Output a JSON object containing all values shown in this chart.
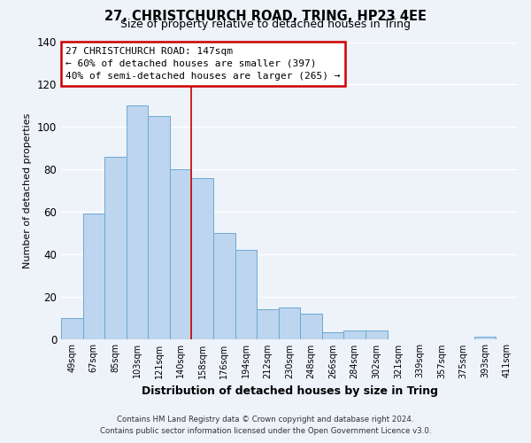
{
  "title": "27, CHRISTCHURCH ROAD, TRING, HP23 4EE",
  "subtitle": "Size of property relative to detached houses in Tring",
  "xlabel": "Distribution of detached houses by size in Tring",
  "ylabel": "Number of detached properties",
  "bar_labels": [
    "49sqm",
    "67sqm",
    "85sqm",
    "103sqm",
    "121sqm",
    "140sqm",
    "158sqm",
    "176sqm",
    "194sqm",
    "212sqm",
    "230sqm",
    "248sqm",
    "266sqm",
    "284sqm",
    "302sqm",
    "321sqm",
    "339sqm",
    "357sqm",
    "375sqm",
    "393sqm",
    "411sqm"
  ],
  "bar_values": [
    10,
    59,
    86,
    110,
    105,
    80,
    76,
    50,
    42,
    14,
    15,
    12,
    3,
    4,
    4,
    0,
    0,
    0,
    0,
    1,
    0
  ],
  "bar_color": "#bdd5ee",
  "bar_edge_color": "#6aaad4",
  "background_color": "#eef2f9",
  "grid_color": "#ffffff",
  "ylim": [
    0,
    140
  ],
  "yticks": [
    0,
    20,
    40,
    60,
    80,
    100,
    120,
    140
  ],
  "vline_x": 5.5,
  "vline_color": "#cc0000",
  "annotation_title": "27 CHRISTCHURCH ROAD: 147sqm",
  "annotation_line1": "← 60% of detached houses are smaller (397)",
  "annotation_line2": "40% of semi-detached houses are larger (265) →",
  "annotation_box_color": "#ffffff",
  "annotation_box_edge": "#cc0000",
  "footer1": "Contains HM Land Registry data © Crown copyright and database right 2024.",
  "footer2": "Contains public sector information licensed under the Open Government Licence v3.0."
}
